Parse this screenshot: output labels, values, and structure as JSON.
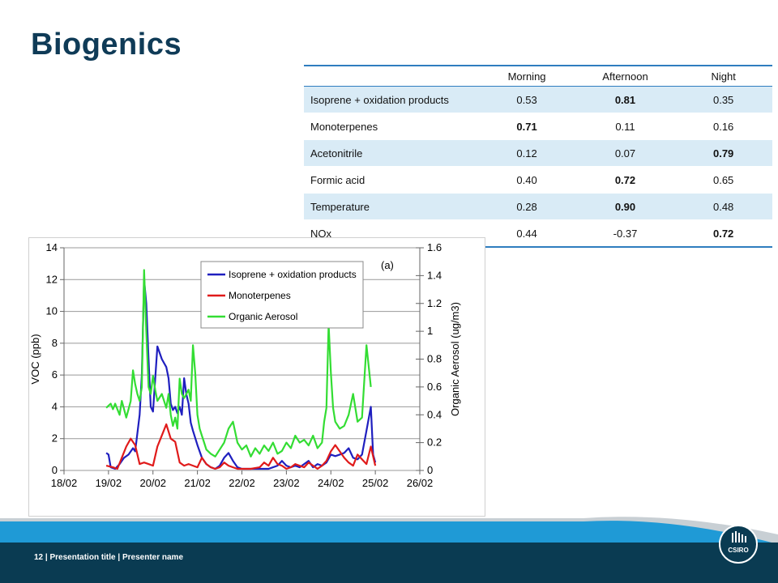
{
  "slide": {
    "title": "Biogenics",
    "footer": "12  |  Presentation title  |  Presenter name",
    "logo_text": "CSIRO"
  },
  "table": {
    "headers": [
      "",
      "Morning",
      "Afternoon",
      "Night"
    ],
    "rows": [
      {
        "label": "Isoprene + oxidation products",
        "values": [
          "0.53",
          "0.81",
          "0.35"
        ],
        "bold": [
          false,
          true,
          false
        ]
      },
      {
        "label": "Monoterpenes",
        "values": [
          "0.71",
          "0.11",
          "0.16"
        ],
        "bold": [
          true,
          false,
          false
        ]
      },
      {
        "label": "Acetonitrile",
        "values": [
          "0.12",
          "0.07",
          "0.79"
        ],
        "bold": [
          false,
          false,
          true
        ]
      },
      {
        "label": "Formic acid",
        "values": [
          "0.40",
          "0.72",
          "0.65"
        ],
        "bold": [
          false,
          true,
          false
        ]
      },
      {
        "label": "Temperature",
        "values": [
          "0.28",
          "0.90",
          "0.48"
        ],
        "bold": [
          false,
          true,
          false
        ]
      },
      {
        "label": "NOx",
        "values": [
          "0.44",
          "-0.37",
          "0.72"
        ],
        "bold": [
          false,
          false,
          true
        ]
      }
    ]
  },
  "chart_data": {
    "type": "line",
    "annotation": "(a)",
    "ylabel": "VOC (ppb)",
    "y2label": "Organic Aerosol (ug/m3)",
    "xlim": [
      18,
      26
    ],
    "ylim": [
      0,
      14
    ],
    "y2lim": [
      0,
      1.6
    ],
    "x_tick_values": [
      18,
      19,
      20,
      21,
      22,
      23,
      24,
      25,
      26
    ],
    "x_tick_labels": [
      "18/02",
      "19/02",
      "20/02",
      "21/02",
      "22/02",
      "23/02",
      "24/02",
      "25/02",
      "26/02"
    ],
    "y_ticks": [
      0,
      2,
      4,
      6,
      8,
      10,
      12,
      14
    ],
    "y_tick_labels": [
      "0",
      "2",
      "4",
      "6",
      "8",
      "10",
      "12",
      "14"
    ],
    "y2_ticks": [
      0,
      0.2,
      0.4,
      0.6,
      0.8,
      1,
      1.2,
      1.4,
      1.6
    ],
    "y2_tick_labels": [
      "0",
      "0.2",
      "0.4",
      "0.6",
      "0.8",
      "1",
      "1.2",
      "1.4",
      "1.6"
    ],
    "grid": true,
    "legend_position": "top-center",
    "colors": {
      "isoprene": "#1f1fbf",
      "monoterpenes": "#e01a1a",
      "aerosol": "#33dd33"
    },
    "series": [
      {
        "name": "Isoprene +  oxidation products",
        "axis": "left",
        "color": "#1f1fbf",
        "x": [
          18.95,
          19.0,
          19.05,
          19.15,
          19.25,
          19.35,
          19.45,
          19.55,
          19.6,
          19.7,
          19.75,
          19.8,
          19.85,
          19.9,
          19.95,
          20.0,
          20.1,
          20.2,
          20.3,
          20.35,
          20.4,
          20.45,
          20.5,
          20.55,
          20.6,
          20.65,
          20.7,
          20.75,
          20.8,
          20.85,
          20.9,
          21.0,
          21.1,
          21.2,
          21.3,
          21.4,
          21.5,
          21.6,
          21.7,
          21.8,
          21.9,
          22.0,
          22.2,
          22.4,
          22.6,
          22.7,
          22.8,
          22.9,
          23.0,
          23.1,
          23.2,
          23.3,
          23.4,
          23.5,
          23.6,
          23.7,
          23.8,
          23.9,
          24.0,
          24.1,
          24.2,
          24.3,
          24.4,
          24.5,
          24.6,
          24.7,
          24.8,
          24.9,
          24.95,
          25.0
        ],
        "y": [
          1.1,
          1.0,
          0.2,
          0.1,
          0.4,
          0.8,
          1.0,
          1.4,
          1.2,
          3.5,
          6.0,
          12.0,
          10.5,
          7.0,
          4.0,
          3.7,
          7.8,
          7.0,
          6.5,
          5.8,
          4.2,
          3.8,
          4.0,
          3.6,
          4.0,
          3.5,
          5.8,
          4.8,
          4.2,
          3.0,
          2.5,
          1.6,
          0.8,
          0.4,
          0.2,
          0.1,
          0.3,
          0.8,
          1.1,
          0.6,
          0.2,
          0.1,
          0.1,
          0.1,
          0.1,
          0.2,
          0.3,
          0.6,
          0.3,
          0.2,
          0.3,
          0.2,
          0.4,
          0.6,
          0.2,
          0.4,
          0.3,
          0.5,
          1.0,
          0.9,
          1.0,
          1.1,
          1.4,
          0.8,
          0.7,
          1.0,
          2.5,
          4.0,
          1.0,
          0.5
        ]
      },
      {
        "name": "Monoterpenes",
        "axis": "left",
        "color": "#e01a1a",
        "x": [
          18.95,
          19.1,
          19.2,
          19.3,
          19.4,
          19.5,
          19.6,
          19.7,
          19.8,
          19.9,
          20.0,
          20.1,
          20.2,
          20.3,
          20.4,
          20.5,
          20.6,
          20.7,
          20.8,
          20.9,
          21.0,
          21.1,
          21.2,
          21.3,
          21.4,
          21.5,
          21.6,
          21.7,
          21.8,
          21.9,
          22.0,
          22.2,
          22.4,
          22.5,
          22.6,
          22.7,
          22.8,
          22.9,
          23.0,
          23.1,
          23.2,
          23.3,
          23.4,
          23.5,
          23.6,
          23.7,
          23.8,
          23.9,
          24.0,
          24.1,
          24.2,
          24.3,
          24.4,
          24.5,
          24.6,
          24.7,
          24.8,
          24.9,
          25.0
        ],
        "y": [
          0.3,
          0.2,
          0.1,
          0.8,
          1.5,
          2.0,
          1.6,
          0.4,
          0.5,
          0.4,
          0.3,
          1.5,
          2.2,
          2.9,
          2.0,
          1.8,
          0.5,
          0.3,
          0.4,
          0.3,
          0.2,
          0.8,
          0.4,
          0.2,
          0.1,
          0.2,
          0.5,
          0.3,
          0.2,
          0.1,
          0.1,
          0.1,
          0.2,
          0.5,
          0.3,
          0.8,
          0.4,
          0.3,
          0.1,
          0.2,
          0.4,
          0.3,
          0.2,
          0.5,
          0.3,
          0.1,
          0.3,
          0.6,
          1.2,
          1.6,
          1.2,
          0.8,
          0.5,
          0.3,
          1.0,
          0.7,
          0.4,
          1.5,
          0.3
        ]
      },
      {
        "name": "Organic Aerosol",
        "axis": "right",
        "color": "#33dd33",
        "x": [
          18.95,
          19.05,
          19.1,
          19.15,
          19.2,
          19.25,
          19.3,
          19.35,
          19.4,
          19.45,
          19.5,
          19.55,
          19.6,
          19.65,
          19.7,
          19.75,
          19.8,
          19.85,
          19.9,
          19.95,
          20.0,
          20.05,
          20.1,
          20.2,
          20.3,
          20.35,
          20.4,
          20.45,
          20.5,
          20.55,
          20.6,
          20.65,
          20.7,
          20.8,
          20.85,
          20.9,
          20.95,
          21.0,
          21.05,
          21.1,
          21.15,
          21.2,
          21.3,
          21.4,
          21.5,
          21.6,
          21.7,
          21.8,
          21.9,
          22.0,
          22.1,
          22.2,
          22.3,
          22.4,
          22.5,
          22.6,
          22.7,
          22.8,
          22.9,
          23.0,
          23.1,
          23.2,
          23.3,
          23.4,
          23.5,
          23.6,
          23.7,
          23.8,
          23.85,
          23.9,
          23.95,
          24.0,
          24.05,
          24.1,
          24.2,
          24.3,
          24.4,
          24.5,
          24.6,
          24.7,
          24.8,
          24.9
        ],
        "y": [
          0.45,
          0.48,
          0.44,
          0.48,
          0.44,
          0.4,
          0.5,
          0.44,
          0.38,
          0.44,
          0.5,
          0.72,
          0.62,
          0.55,
          0.5,
          0.6,
          1.44,
          1.0,
          0.6,
          0.55,
          0.68,
          0.58,
          0.5,
          0.55,
          0.45,
          0.55,
          0.4,
          0.32,
          0.38,
          0.3,
          0.66,
          0.55,
          0.52,
          0.58,
          0.5,
          0.9,
          0.7,
          0.4,
          0.3,
          0.25,
          0.2,
          0.15,
          0.12,
          0.1,
          0.15,
          0.2,
          0.3,
          0.35,
          0.2,
          0.15,
          0.18,
          0.1,
          0.16,
          0.12,
          0.18,
          0.14,
          0.2,
          0.12,
          0.14,
          0.2,
          0.16,
          0.25,
          0.2,
          0.22,
          0.18,
          0.25,
          0.16,
          0.2,
          0.35,
          0.45,
          1.05,
          0.7,
          0.45,
          0.35,
          0.3,
          0.32,
          0.4,
          0.55,
          0.35,
          0.38,
          0.9,
          0.6
        ]
      }
    ]
  }
}
